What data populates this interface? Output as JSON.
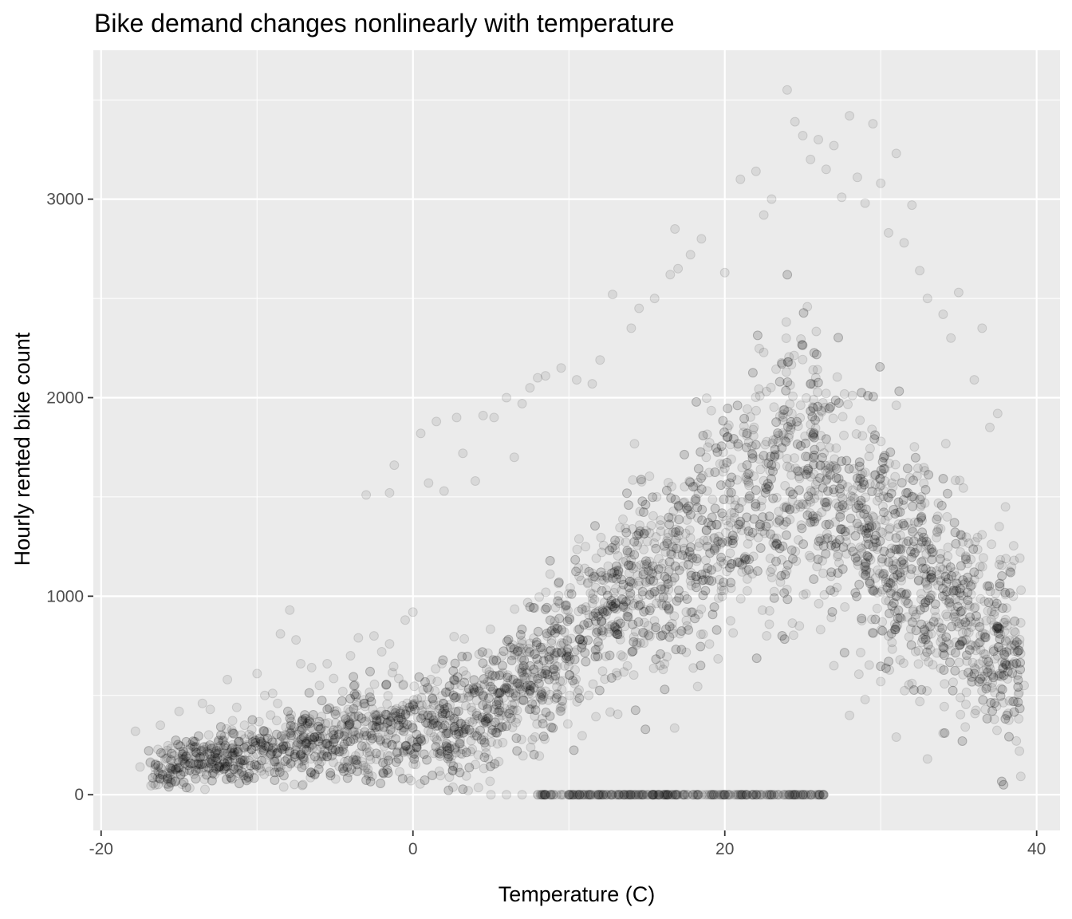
{
  "chart_data": {
    "type": "scatter",
    "title": "Bike demand changes nonlinearly with temperature",
    "xlabel": "Temperature (C)",
    "ylabel": "Hourly rented bike count",
    "xlim": [
      -20.5,
      41.5
    ],
    "ylim": [
      -180,
      3750
    ],
    "x_ticks": [
      -20,
      0,
      20,
      40
    ],
    "x_tick_labels": [
      "-20",
      "0",
      "20",
      "40"
    ],
    "y_ticks": [
      0,
      1000,
      2000,
      3000
    ],
    "y_tick_labels": [
      "0",
      "1000",
      "2000",
      "3000"
    ],
    "grid": true,
    "legend": "none",
    "point_color": "#000000",
    "point_fill_opacity": 0.08,
    "panel_background": "#ebebeb",
    "gridline_color": "#ffffff",
    "series": [
      {
        "points": [
          [
            -17.8,
            320
          ],
          [
            -17.5,
            140
          ],
          [
            -16.2,
            350
          ],
          [
            -15.9,
            180
          ],
          [
            -15.0,
            420
          ],
          [
            -13.5,
            460
          ],
          [
            -13.0,
            430
          ],
          [
            -12.5,
            240
          ],
          [
            -11.9,
            580
          ],
          [
            -11.3,
            440
          ],
          [
            -10.8,
            350
          ],
          [
            -10.0,
            610
          ],
          [
            -9.5,
            500
          ],
          [
            -9.0,
            510
          ],
          [
            -8.5,
            810
          ],
          [
            -7.9,
            930
          ],
          [
            -7.5,
            780
          ],
          [
            -7.2,
            660
          ],
          [
            -6.5,
            640
          ],
          [
            -6.0,
            550
          ],
          [
            -5.5,
            660
          ],
          [
            -4.5,
            520
          ],
          [
            -4.0,
            700
          ],
          [
            -3.5,
            790
          ],
          [
            -3.0,
            1510
          ],
          [
            -2.5,
            800
          ],
          [
            -2.0,
            720
          ],
          [
            -1.5,
            760
          ],
          [
            -1.5,
            1520
          ],
          [
            -1.2,
            1660
          ],
          [
            -0.5,
            880
          ],
          [
            0.0,
            920
          ],
          [
            0.5,
            1820
          ],
          [
            1.0,
            1570
          ],
          [
            1.5,
            1880
          ],
          [
            2.0,
            1530
          ],
          [
            2.8,
            1900
          ],
          [
            3.2,
            1720
          ],
          [
            4.0,
            1580
          ],
          [
            4.5,
            1910
          ],
          [
            5.2,
            1900
          ],
          [
            6.0,
            2000
          ],
          [
            6.5,
            1700
          ],
          [
            7.0,
            1970
          ],
          [
            7.5,
            2050
          ],
          [
            8.0,
            2100
          ],
          [
            8.5,
            2110
          ],
          [
            9.5,
            2150
          ],
          [
            10.5,
            2090
          ],
          [
            11.5,
            2070
          ],
          [
            12.0,
            2190
          ],
          [
            12.8,
            2520
          ],
          [
            14.0,
            2350
          ],
          [
            14.5,
            2450
          ],
          [
            15.5,
            2500
          ],
          [
            16.5,
            2620
          ],
          [
            17.0,
            2650
          ],
          [
            16.8,
            2850
          ],
          [
            17.8,
            2720
          ],
          [
            18.5,
            2800
          ],
          [
            20.0,
            2630
          ],
          [
            21.0,
            3100
          ],
          [
            22.0,
            3140
          ],
          [
            22.5,
            2920
          ],
          [
            23.0,
            3000
          ],
          [
            24.0,
            3550
          ],
          [
            24.5,
            3390
          ],
          [
            25.0,
            3320
          ],
          [
            25.5,
            3200
          ],
          [
            26.0,
            3300
          ],
          [
            26.5,
            3150
          ],
          [
            27.0,
            3270
          ],
          [
            27.5,
            3010
          ],
          [
            28.0,
            3420
          ],
          [
            28.5,
            3110
          ],
          [
            29.0,
            2980
          ],
          [
            29.5,
            3380
          ],
          [
            30.0,
            3080
          ],
          [
            30.5,
            2830
          ],
          [
            31.0,
            3230
          ],
          [
            31.5,
            2780
          ],
          [
            32.0,
            2970
          ],
          [
            32.5,
            2640
          ],
          [
            33.0,
            2500
          ],
          [
            34.0,
            2420
          ],
          [
            34.5,
            2300
          ],
          [
            35.0,
            2530
          ],
          [
            36.0,
            2090
          ],
          [
            36.5,
            2350
          ],
          [
            37.0,
            1850
          ],
          [
            37.5,
            1920
          ],
          [
            38.0,
            1450
          ],
          [
            38.5,
            1000
          ],
          [
            39.0,
            1030
          ],
          [
            39.2,
            550
          ],
          [
            38.6,
            470
          ],
          [
            37.5,
            700
          ],
          [
            36.5,
            570
          ],
          [
            35.5,
            820
          ],
          [
            34.0,
            310
          ],
          [
            33.0,
            180
          ],
          [
            32.0,
            560
          ],
          [
            31.0,
            290
          ],
          [
            30.5,
            800
          ],
          [
            30.0,
            570
          ],
          [
            29.0,
            480
          ],
          [
            28.0,
            400
          ],
          [
            27.0,
            650
          ],
          [
            26.0,
            0
          ],
          [
            25.0,
            0
          ],
          [
            24.0,
            0
          ],
          [
            23.0,
            0
          ],
          [
            22.0,
            0
          ],
          [
            21.0,
            0
          ],
          [
            20.0,
            0
          ],
          [
            19.0,
            0
          ],
          [
            18.0,
            0
          ],
          [
            17.0,
            0
          ],
          [
            16.0,
            0
          ],
          [
            15.0,
            0
          ],
          [
            14.0,
            0
          ],
          [
            13.0,
            0
          ],
          [
            12.0,
            0
          ],
          [
            11.0,
            0
          ],
          [
            10.0,
            0
          ],
          [
            9.0,
            0
          ],
          [
            8.0,
            0
          ],
          [
            7.0,
            0
          ],
          [
            6.0,
            0
          ],
          [
            5.0,
            0
          ]
        ]
      }
    ]
  }
}
